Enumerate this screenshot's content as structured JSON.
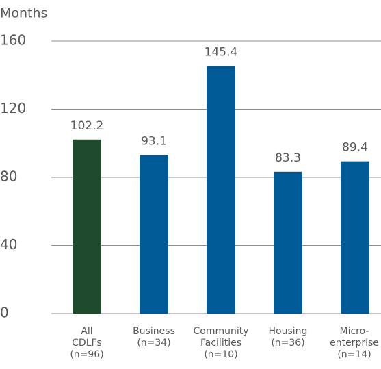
{
  "chart_data": {
    "type": "bar",
    "y_axis_label": "Months",
    "categories": [
      [
        "All",
        "CDLFs",
        "(n=96)"
      ],
      [
        "Business",
        "(n=34)"
      ],
      [
        "Community",
        "Facilities",
        "(n=10)"
      ],
      [
        "Housing",
        "(n=36)"
      ],
      [
        "Micro-",
        "enterprise",
        "(n=14)"
      ]
    ],
    "values": [
      102.2,
      93.1,
      145.4,
      83.3,
      89.4
    ],
    "colors": [
      "#1f4b2c",
      "#005a96",
      "#005a96",
      "#005a96",
      "#005a96"
    ],
    "ylim": [
      0,
      160
    ],
    "yticks": [
      0,
      40,
      80,
      120,
      160
    ],
    "grid": true
  }
}
